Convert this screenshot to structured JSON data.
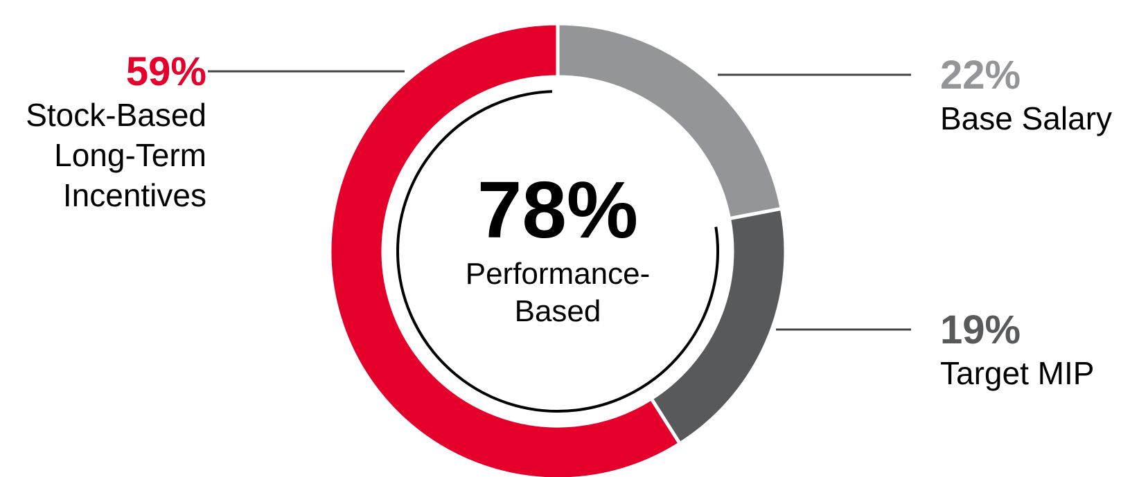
{
  "chart_data": {
    "type": "pie",
    "donut": true,
    "categories": [
      "Base Salary",
      "Target MIP",
      "Stock-Based Long-Term Incentives"
    ],
    "values": [
      22,
      19,
      59
    ],
    "value_labels": [
      "22%",
      "19%",
      "59%"
    ],
    "colors": [
      "#939598",
      "#58595b",
      "#e4002b"
    ],
    "performance_based": {
      "value": 78,
      "value_label": "78%",
      "label": "Performance-Based"
    }
  }
}
